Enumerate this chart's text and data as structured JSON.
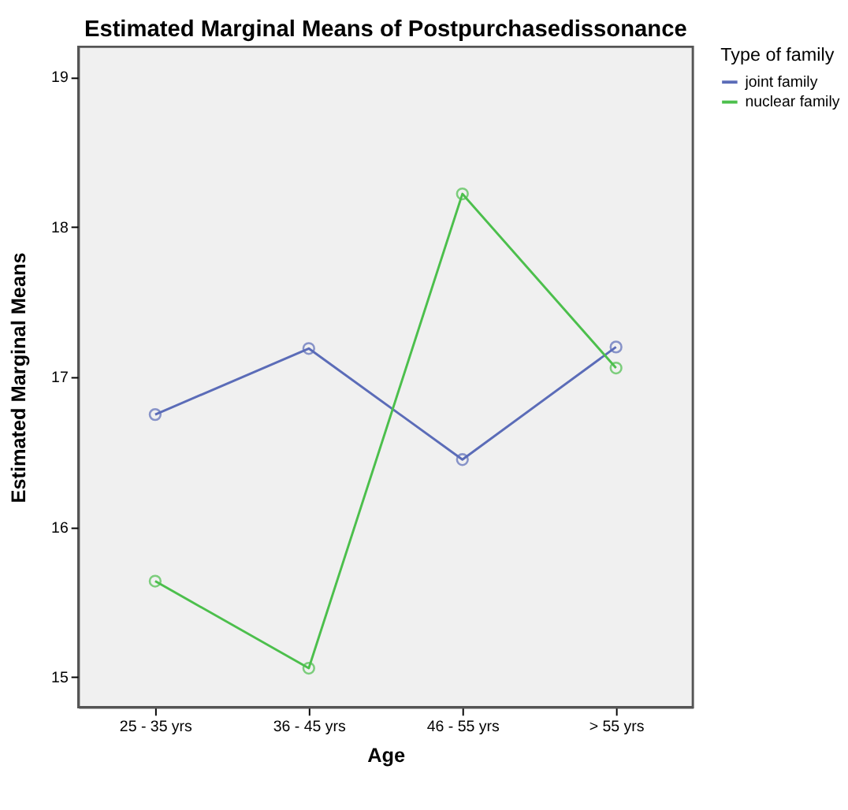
{
  "chart_data": {
    "type": "line",
    "title": "Estimated Marginal Means of Postpurchasedissonance",
    "xlabel": "Age",
    "ylabel": "Estimated Marginal Means",
    "legend_title": "Type of family",
    "categories": [
      "25 - 35 yrs",
      "36 - 45 yrs",
      "46 - 55 yrs",
      "> 55 yrs"
    ],
    "series": [
      {
        "name": "joint family",
        "color": "#5b6cb8",
        "values": [
          16.75,
          17.19,
          16.45,
          17.2
        ]
      },
      {
        "name": "nuclear family",
        "color": "#4cbf4c",
        "values": [
          15.64,
          15.06,
          18.22,
          17.06
        ]
      }
    ],
    "ylim": [
      14.8,
      19.2
    ],
    "yticks": [
      15,
      16,
      17,
      18,
      19
    ],
    "grid": false,
    "legend": "top right",
    "marker": "circle",
    "line_style": "solid"
  }
}
